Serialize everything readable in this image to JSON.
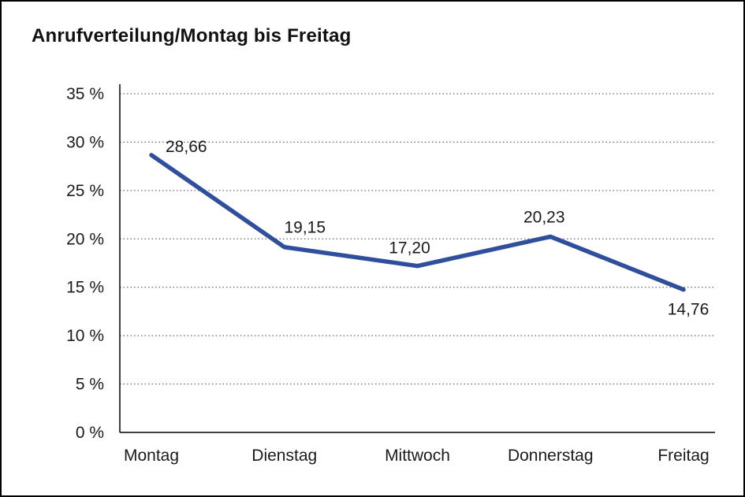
{
  "chart_data": {
    "type": "line",
    "title": "Anrufverteilung/Montag bis Freitag",
    "categories": [
      "Montag",
      "Dienstag",
      "Mittwoch",
      "Donnerstag",
      "Freitag"
    ],
    "values": [
      28.66,
      19.15,
      17.2,
      20.23,
      14.76
    ],
    "point_labels": [
      "28,66",
      "19,15",
      "17,20",
      "20,23",
      "14,76"
    ],
    "series_name": "Anrufverteilung",
    "xlabel": "",
    "ylabel": "",
    "ylim": [
      0,
      35
    ],
    "yticks": [
      0,
      5,
      10,
      15,
      20,
      25,
      30,
      35
    ],
    "ytick_labels": [
      "0 %",
      "5 %",
      "10 %",
      "15 %",
      "20 %",
      "25 %",
      "30 %",
      "35 %"
    ],
    "grid": "dotted-horizontal",
    "legend_position": "none",
    "colors": {
      "line": "#2f4f9d",
      "text": "#1a1a1a",
      "grid": "#444444",
      "axis": "#000000",
      "background": "#ffffff"
    }
  }
}
